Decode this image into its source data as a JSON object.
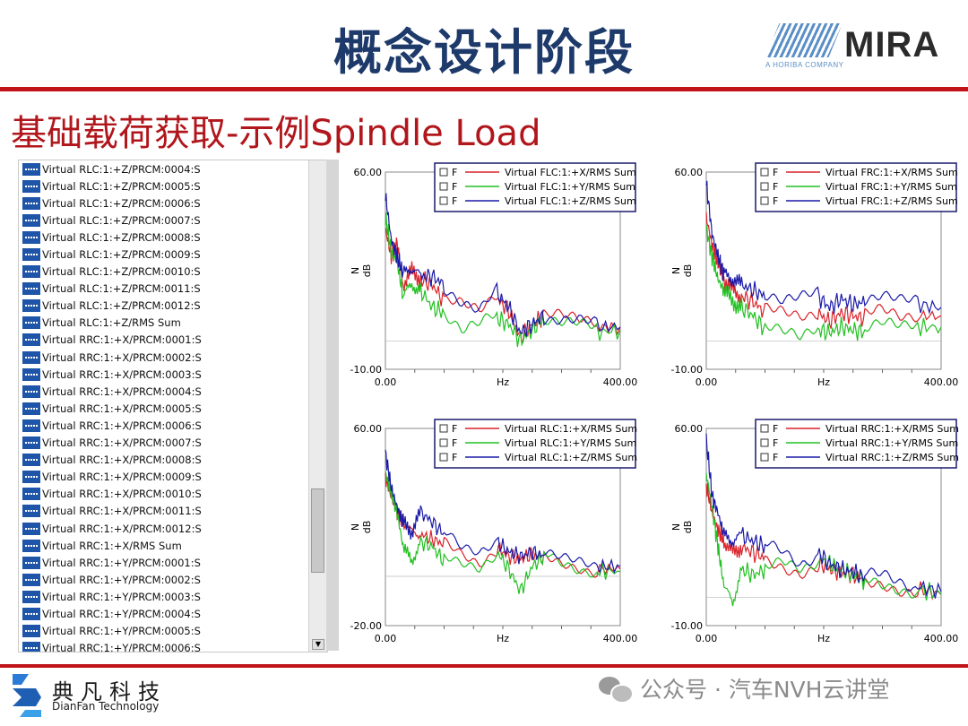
{
  "header": {
    "title": "概念设计阶段",
    "logo_text": "MIRA",
    "logo_sub": "A HORIBA COMPANY",
    "subtitle": "基础载荷获取-示例Spindle Load"
  },
  "tree_items": [
    "Virtual RLC:1:+Z/PRCM:0004:S",
    "Virtual RLC:1:+Z/PRCM:0005:S",
    "Virtual RLC:1:+Z/PRCM:0006:S",
    "Virtual RLC:1:+Z/PRCM:0007:S",
    "Virtual RLC:1:+Z/PRCM:0008:S",
    "Virtual RLC:1:+Z/PRCM:0009:S",
    "Virtual RLC:1:+Z/PRCM:0010:S",
    "Virtual RLC:1:+Z/PRCM:0011:S",
    "Virtual RLC:1:+Z/PRCM:0012:S",
    "Virtual RLC:1:+Z/RMS Sum",
    "Virtual RRC:1:+X/PRCM:0001:S",
    "Virtual RRC:1:+X/PRCM:0002:S",
    "Virtual RRC:1:+X/PRCM:0003:S",
    "Virtual RRC:1:+X/PRCM:0004:S",
    "Virtual RRC:1:+X/PRCM:0005:S",
    "Virtual RRC:1:+X/PRCM:0006:S",
    "Virtual RRC:1:+X/PRCM:0007:S",
    "Virtual RRC:1:+X/PRCM:0008:S",
    "Virtual RRC:1:+X/PRCM:0009:S",
    "Virtual RRC:1:+X/PRCM:0010:S",
    "Virtual RRC:1:+X/PRCM:0011:S",
    "Virtual RRC:1:+X/PRCM:0012:S",
    "Virtual RRC:1:+X/RMS Sum",
    "Virtual RRC:1:+Y/PRCM:0001:S",
    "Virtual RRC:1:+Y/PRCM:0002:S",
    "Virtual RRC:1:+Y/PRCM:0003:S",
    "Virtual RRC:1:+Y/PRCM:0004:S",
    "Virtual RRC:1:+Y/PRCM:0005:S",
    "Virtual RRC:1:+Y/PRCM:0006:S"
  ],
  "colors": {
    "x": "#d9232a",
    "y": "#22c022",
    "z": "#1a1aa8",
    "brand_red": "#c0141a",
    "title_blue": "#1d3a6b"
  },
  "chart_data": [
    {
      "type": "line",
      "ylabel": "N",
      "yunit": "dB",
      "xlabel": "Hz",
      "xlim": [
        0,
        400
      ],
      "ylim": [
        -10,
        60
      ],
      "xticks": [
        "0.00",
        "400.00"
      ],
      "yticks": [
        "60.00",
        "-10.00"
      ],
      "legend_flag": "F",
      "legend": [
        "Virtual FLC:1:+X/RMS Sum",
        "Virtual FLC:1:+Y/RMS Sum",
        "Virtual FLC:1:+Z/RMS Sum"
      ],
      "x": [
        0,
        10,
        20,
        30,
        45,
        60,
        80,
        100,
        130,
        160,
        190,
        210,
        230,
        250,
        270,
        300,
        330,
        360,
        400
      ],
      "series": [
        {
          "name": "Virtual FLC:1:+X/RMS Sum",
          "values": [
            40,
            30,
            35,
            20,
            25,
            22,
            20,
            14,
            12,
            9,
            15,
            11,
            1,
            6,
            9,
            8,
            6,
            5,
            5
          ]
        },
        {
          "name": "Virtual FLC:1:+Y/RMS Sum",
          "values": [
            44,
            32,
            28,
            16,
            20,
            18,
            12,
            10,
            3,
            5,
            8,
            6,
            0,
            4,
            8,
            6,
            5,
            3,
            4
          ]
        },
        {
          "name": "Virtual FLC:1:+Z/RMS Sum",
          "values": [
            52,
            36,
            30,
            24,
            26,
            23,
            23,
            20,
            14,
            10,
            17,
            12,
            3,
            6,
            9,
            8,
            7,
            5,
            5
          ]
        }
      ]
    },
    {
      "type": "line",
      "ylabel": "N",
      "yunit": "dB",
      "xlabel": "Hz",
      "xlim": [
        0,
        400
      ],
      "ylim": [
        -10,
        60
      ],
      "xticks": [
        "0.00",
        "400.00"
      ],
      "yticks": [
        "60.00",
        "-10.00"
      ],
      "legend_flag": "F",
      "legend": [
        "Virtual FRC:1:+X/RMS Sum",
        "Virtual FRC:1:+Y/RMS Sum",
        "Virtual FRC:1:+Z/RMS Sum"
      ],
      "x": [
        0,
        10,
        20,
        30,
        45,
        60,
        80,
        100,
        130,
        160,
        190,
        210,
        230,
        250,
        270,
        300,
        330,
        360,
        400
      ],
      "series": [
        {
          "name": "Virtual FRC:1:+X/RMS Sum",
          "values": [
            44,
            34,
            28,
            22,
            18,
            16,
            14,
            10,
            9,
            8,
            10,
            7,
            10,
            9,
            8,
            10,
            8,
            9,
            9
          ]
        },
        {
          "name": "Virtual FRC:1:+Y/RMS Sum",
          "values": [
            40,
            30,
            22,
            18,
            14,
            12,
            9,
            4,
            2,
            0,
            4,
            3,
            5,
            4,
            3,
            5,
            4,
            5,
            5
          ]
        },
        {
          "name": "Virtual FRC:1:+Z/RMS Sum",
          "values": [
            56,
            38,
            30,
            24,
            22,
            20,
            18,
            16,
            13,
            14,
            16,
            12,
            15,
            13,
            14,
            15,
            13,
            13,
            12
          ]
        }
      ]
    },
    {
      "type": "line",
      "ylabel": "N",
      "yunit": "dB",
      "xlabel": "Hz",
      "xlim": [
        0,
        400
      ],
      "ylim": [
        -20,
        60
      ],
      "xticks": [
        "0.00",
        "400.00"
      ],
      "yticks": [
        "60.00",
        "-20.00"
      ],
      "legend_flag": "F",
      "legend": [
        "Virtual RLC:1:+X/RMS Sum",
        "Virtual RLC:1:+Y/RMS Sum",
        "Virtual RLC:1:+Z/RMS Sum"
      ],
      "x": [
        0,
        10,
        20,
        30,
        45,
        60,
        80,
        100,
        130,
        160,
        190,
        210,
        230,
        250,
        270,
        300,
        330,
        360,
        400
      ],
      "series": [
        {
          "name": "Virtual RLC:1:+X/RMS Sum",
          "values": [
            40,
            32,
            26,
            22,
            18,
            17,
            15,
            13,
            9,
            6,
            12,
            8,
            7,
            9,
            7,
            5,
            4,
            3,
            3
          ]
        },
        {
          "name": "Virtual RLC:1:+Y/RMS Sum",
          "values": [
            42,
            34,
            26,
            12,
            6,
            14,
            12,
            6,
            4,
            3,
            10,
            3,
            -6,
            4,
            8,
            4,
            2,
            2,
            2
          ]
        },
        {
          "name": "Virtual RLC:1:+Z/RMS Sum",
          "values": [
            50,
            36,
            28,
            22,
            18,
            26,
            22,
            17,
            10,
            8,
            14,
            10,
            8,
            10,
            8,
            6,
            5,
            4,
            4
          ]
        }
      ]
    },
    {
      "type": "line",
      "ylabel": "N",
      "yunit": "dB",
      "xlabel": "Hz",
      "xlim": [
        0,
        400
      ],
      "ylim": [
        -10,
        60
      ],
      "xticks": [
        "0.00",
        "400.00"
      ],
      "yticks": [
        "60.00",
        "-10.00"
      ],
      "legend_flag": "F",
      "legend": [
        "Virtual RRC:1:+X/RMS Sum",
        "Virtual RRC:1:+Y/RMS Sum",
        "Virtual RRC:1:+Z/RMS Sum"
      ],
      "x": [
        0,
        10,
        20,
        30,
        45,
        60,
        80,
        100,
        130,
        160,
        190,
        210,
        230,
        250,
        270,
        300,
        330,
        360,
        400
      ],
      "series": [
        {
          "name": "Virtual RRC:1:+X/RMS Sum",
          "values": [
            40,
            30,
            24,
            20,
            16,
            18,
            16,
            14,
            12,
            10,
            12,
            10,
            9,
            8,
            6,
            6,
            4,
            3,
            1
          ]
        },
        {
          "name": "Virtual RRC:1:+Y/RMS Sum",
          "values": [
            44,
            32,
            18,
            4,
            -2,
            10,
            8,
            10,
            14,
            12,
            14,
            12,
            10,
            8,
            6,
            5,
            4,
            3,
            1
          ]
        },
        {
          "name": "Virtual RRC:1:+Z/RMS Sum",
          "values": [
            56,
            36,
            30,
            22,
            20,
            22,
            20,
            18,
            16,
            12,
            16,
            12,
            10,
            9,
            7,
            8,
            6,
            4,
            2
          ]
        }
      ]
    }
  ],
  "footer": {
    "brand_cn": "典凡科技",
    "brand_en": "DianFan Technology",
    "wechat_text": "公众号 · 汽车NVH云讲堂"
  }
}
